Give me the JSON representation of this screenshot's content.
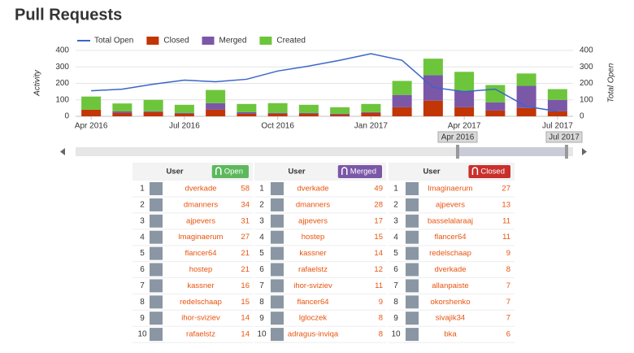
{
  "header": {
    "title": "Pull Requests"
  },
  "chart_data": {
    "type": "bar",
    "stacked": true,
    "y_label": "Activity",
    "y2_label": "Total Open",
    "categories": [
      "Apr 2016",
      null,
      null,
      "Jul 2016",
      null,
      null,
      "Oct 2016",
      null,
      null,
      "Jan 2017",
      null,
      null,
      "Apr 2017",
      null,
      null,
      "Jul 2017"
    ],
    "series": [
      {
        "name": "Total Open",
        "type": "line",
        "axis": "y2",
        "color": "#3a66c8",
        "values": [
          155,
          165,
          195,
          220,
          210,
          225,
          275,
          305,
          340,
          380,
          340,
          175,
          150,
          165,
          60,
          30
        ]
      },
      {
        "name": "Closed",
        "type": "bar",
        "color": "#c23505",
        "values": [
          40,
          20,
          25,
          15,
          40,
          15,
          15,
          15,
          10,
          20,
          55,
          95,
          55,
          35,
          50,
          30
        ]
      },
      {
        "name": "Merged",
        "type": "bar",
        "color": "#7b57a8",
        "values": [
          0,
          10,
          5,
          5,
          40,
          10,
          5,
          5,
          5,
          5,
          75,
          155,
          100,
          50,
          135,
          70
        ]
      },
      {
        "name": "Created",
        "type": "bar",
        "color": "#6dc53b",
        "values": [
          80,
          48,
          70,
          50,
          80,
          50,
          60,
          50,
          40,
          50,
          85,
          100,
          115,
          105,
          75,
          65
        ]
      }
    ],
    "ylim": [
      0,
      400
    ],
    "yticks": [
      0,
      100,
      200,
      300,
      400
    ],
    "y2lim": [
      0,
      400
    ],
    "y2ticks": [
      0,
      100,
      200,
      300,
      400
    ],
    "grid": true,
    "legend": "top",
    "navigator": {
      "from": "Apr 2016",
      "to": "Jul 2017"
    }
  },
  "tables": [
    {
      "header": "User",
      "button": "Open",
      "color": "#5cb85c",
      "rows": [
        [
          1,
          "dverkade",
          58
        ],
        [
          2,
          "dmanners",
          34
        ],
        [
          3,
          "ajpevers",
          31
        ],
        [
          4,
          "lmaginaerum",
          27
        ],
        [
          5,
          "flancer64",
          21
        ],
        [
          6,
          "hostep",
          21
        ],
        [
          7,
          "kassner",
          16
        ],
        [
          8,
          "redelschaap",
          15
        ],
        [
          9,
          "ihor-sviziev",
          14
        ],
        [
          10,
          "rafaelstz",
          14
        ]
      ]
    },
    {
      "header": "User",
      "button": "Merged",
      "color": "#7b57a8",
      "rows": [
        [
          1,
          "dverkade",
          49
        ],
        [
          2,
          "dmanners",
          28
        ],
        [
          3,
          "ajpevers",
          17
        ],
        [
          4,
          "hostep",
          15
        ],
        [
          5,
          "kassner",
          14
        ],
        [
          6,
          "rafaelstz",
          12
        ],
        [
          7,
          "ihor-sviziev",
          11
        ],
        [
          8,
          "flancer64",
          9
        ],
        [
          9,
          "lgloczek",
          8
        ],
        [
          10,
          "adragus-inviqa",
          8
        ]
      ]
    },
    {
      "header": "User",
      "button": "Closed",
      "color": "#c9302c",
      "rows": [
        [
          1,
          "lmaginaerum",
          27
        ],
        [
          2,
          "ajpevers",
          13
        ],
        [
          3,
          "basselalaraaj",
          11
        ],
        [
          4,
          "flancer64",
          11
        ],
        [
          5,
          "redelschaap",
          9
        ],
        [
          6,
          "dverkade",
          8
        ],
        [
          7,
          "allanpaiste",
          7
        ],
        [
          8,
          "okorshenko",
          7
        ],
        [
          9,
          "sivajik34",
          7
        ],
        [
          10,
          "bka",
          6
        ]
      ]
    }
  ]
}
